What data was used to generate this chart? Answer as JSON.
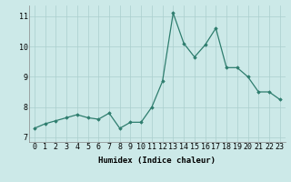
{
  "x": [
    0,
    1,
    2,
    3,
    4,
    5,
    6,
    7,
    8,
    9,
    10,
    11,
    12,
    13,
    14,
    15,
    16,
    17,
    18,
    19,
    20,
    21,
    22,
    23
  ],
  "y": [
    7.3,
    7.45,
    7.55,
    7.65,
    7.75,
    7.65,
    7.6,
    7.8,
    7.3,
    7.5,
    7.5,
    8.0,
    8.85,
    11.1,
    10.1,
    9.65,
    10.05,
    10.6,
    9.3,
    9.3,
    9.0,
    8.5,
    8.5,
    8.25
  ],
  "line_color": "#2e7d6e",
  "marker": "D",
  "marker_size": 1.8,
  "linewidth": 0.9,
  "xlabel": "Humidex (Indice chaleur)",
  "xlim": [
    -0.5,
    23.5
  ],
  "ylim": [
    6.85,
    11.35
  ],
  "yticks": [
    7,
    8,
    9,
    10,
    11
  ],
  "xticks": [
    0,
    1,
    2,
    3,
    4,
    5,
    6,
    7,
    8,
    9,
    10,
    11,
    12,
    13,
    14,
    15,
    16,
    17,
    18,
    19,
    20,
    21,
    22,
    23
  ],
  "xtick_labels": [
    "0",
    "1",
    "2",
    "3",
    "4",
    "5",
    "6",
    "7",
    "8",
    "9",
    "10",
    "11",
    "12",
    "13",
    "14",
    "15",
    "16",
    "17",
    "18",
    "19",
    "20",
    "21",
    "22",
    "23"
  ],
  "bg_color": "#cce9e8",
  "grid_color": "#aacfcd",
  "xlabel_fontsize": 6.5,
  "tick_fontsize": 6.0,
  "font_family": "monospace"
}
